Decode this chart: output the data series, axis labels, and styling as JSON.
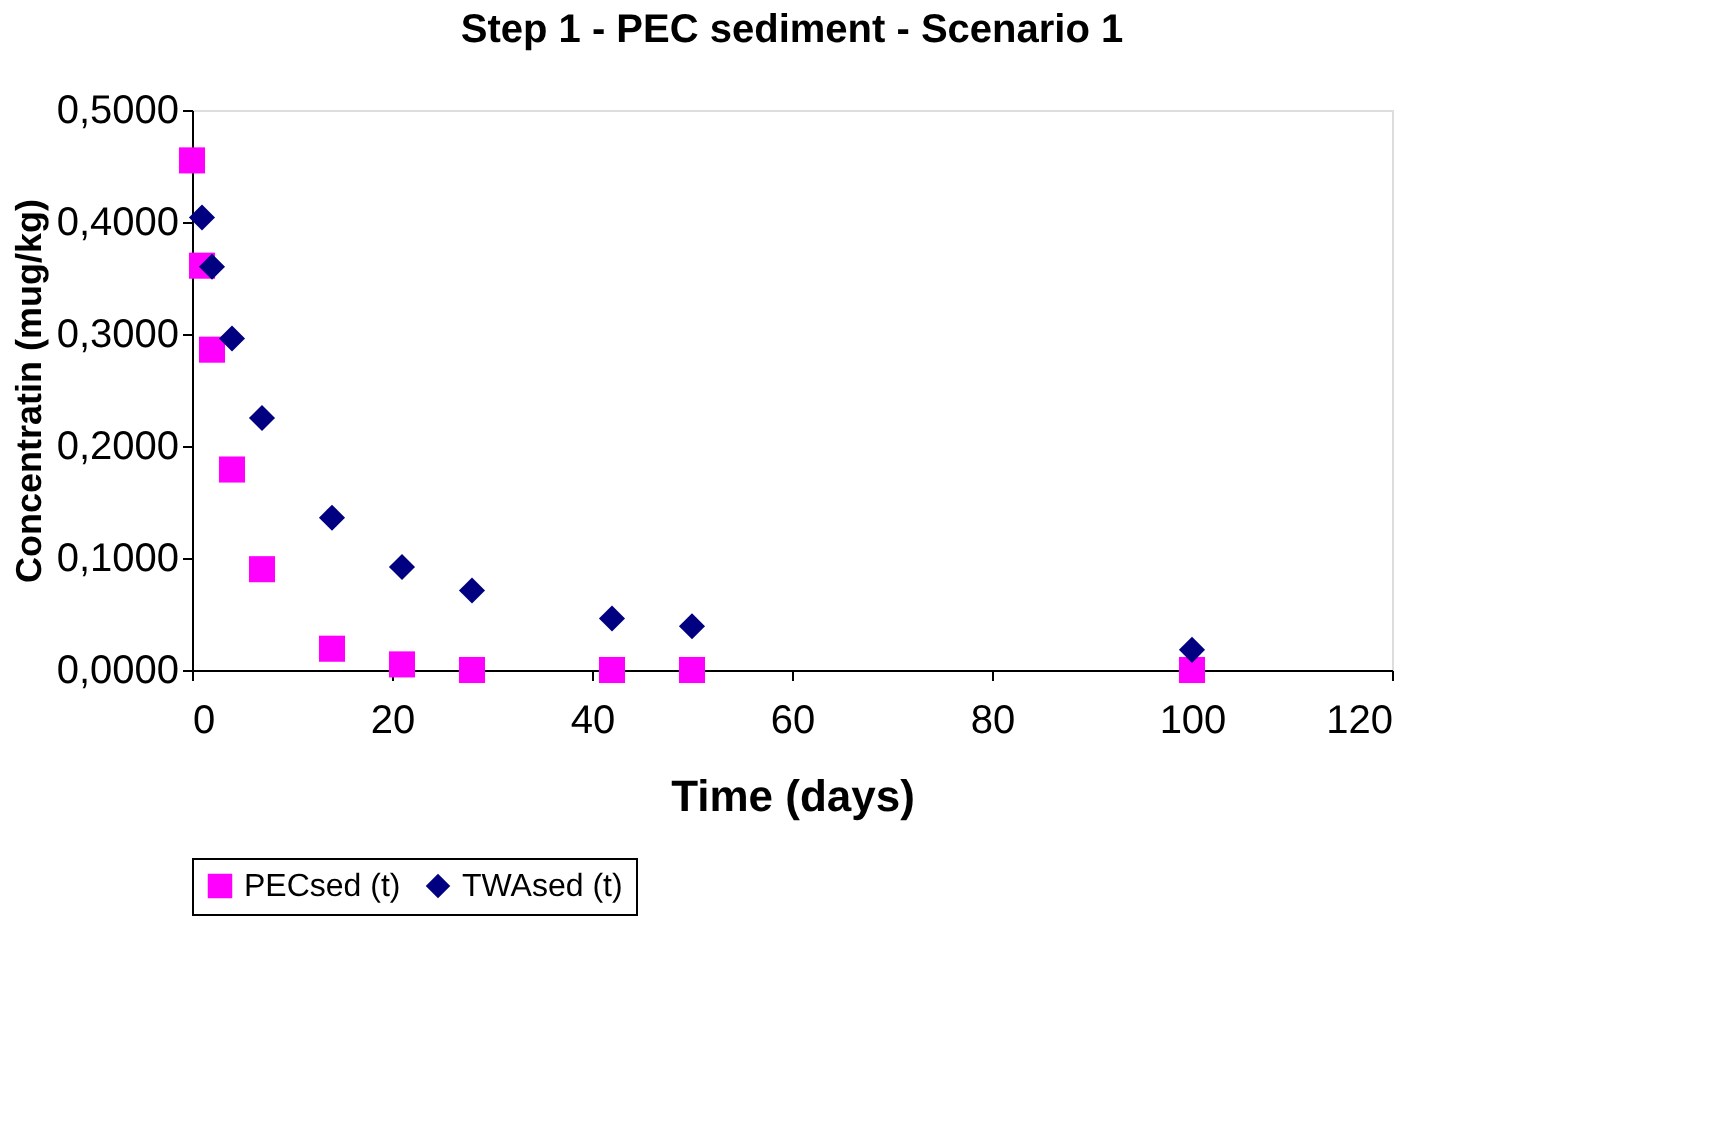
{
  "chart_data": {
    "type": "scatter",
    "title": "Step 1 - PEC sediment - Scenario 1",
    "xlabel": "Time (days)",
    "ylabel": "Concentratin (mug/kg)",
    "x": [
      0,
      1,
      2,
      4,
      7,
      14,
      21,
      28,
      42,
      50,
      100
    ],
    "series": [
      {
        "name": "PECsed (t)",
        "color": "#ff00ff",
        "marker": "square",
        "values": [
          0.455,
          0.361,
          0.286,
          0.179,
          0.09,
          0.019,
          0.005,
          0.0,
          0.0,
          0.0,
          0.0
        ]
      },
      {
        "name": "TWAsed (t)",
        "color": "#000080",
        "marker": "diamond",
        "x": [
          1,
          2,
          4,
          7,
          14,
          21,
          28,
          42,
          50,
          100
        ],
        "values": [
          0.404,
          0.36,
          0.296,
          0.225,
          0.136,
          0.092,
          0.071,
          0.046,
          0.039,
          0.018
        ]
      }
    ],
    "xlim": [
      0,
      120
    ],
    "xticks": [
      0,
      20,
      40,
      60,
      80,
      100,
      120
    ],
    "ylim": [
      0,
      0.5
    ],
    "yticks": [
      {
        "value": 0,
        "label": "0,0000"
      },
      {
        "value": 0.1,
        "label": "0,1000"
      },
      {
        "value": 0.2,
        "label": "0,2000"
      },
      {
        "value": 0.3,
        "label": "0,3000"
      },
      {
        "value": 0.4,
        "label": "0,4000"
      },
      {
        "value": 0.5,
        "label": "0,5000"
      }
    ],
    "grid": false,
    "legend": "bottom"
  }
}
